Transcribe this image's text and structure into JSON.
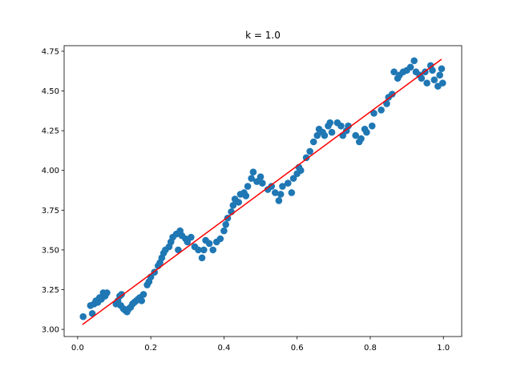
{
  "chart_data": {
    "type": "scatter",
    "title": "k = 1.0",
    "color": "#1f77b4",
    "x": [
      0.015,
      0.04,
      0.035,
      0.045,
      0.05,
      0.055,
      0.06,
      0.065,
      0.07,
      0.08,
      0.075,
      0.105,
      0.11,
      0.115,
      0.12,
      0.118,
      0.125,
      0.13,
      0.135,
      0.14,
      0.145,
      0.15,
      0.155,
      0.16,
      0.165,
      0.17,
      0.175,
      0.18,
      0.19,
      0.195,
      0.2,
      0.21,
      0.22,
      0.225,
      0.23,
      0.235,
      0.24,
      0.25,
      0.255,
      0.26,
      0.27,
      0.28,
      0.285,
      0.275,
      0.295,
      0.3,
      0.31,
      0.32,
      0.33,
      0.34,
      0.345,
      0.35,
      0.36,
      0.37,
      0.38,
      0.39,
      0.4,
      0.405,
      0.41,
      0.42,
      0.425,
      0.43,
      0.44,
      0.445,
      0.455,
      0.46,
      0.465,
      0.475,
      0.48,
      0.49,
      0.5,
      0.505,
      0.52,
      0.53,
      0.54,
      0.55,
      0.555,
      0.56,
      0.575,
      0.585,
      0.59,
      0.6,
      0.605,
      0.61,
      0.625,
      0.635,
      0.645,
      0.655,
      0.66,
      0.67,
      0.675,
      0.685,
      0.69,
      0.695,
      0.71,
      0.72,
      0.725,
      0.735,
      0.74,
      0.76,
      0.77,
      0.775,
      0.785,
      0.79,
      0.805,
      0.81,
      0.83,
      0.845,
      0.85,
      0.86,
      0.865,
      0.875,
      0.88,
      0.89,
      0.9,
      0.91,
      0.92,
      0.925,
      0.935,
      0.94,
      0.95,
      0.955,
      0.965,
      0.97,
      0.975,
      0.985,
      0.99,
      0.995,
      0.998
    ],
    "values": [
      3.08,
      3.1,
      3.15,
      3.16,
      3.18,
      3.17,
      3.2,
      3.19,
      3.23,
      3.23,
      3.21,
      3.16,
      3.18,
      3.21,
      3.22,
      3.15,
      3.13,
      3.12,
      3.11,
      3.13,
      3.14,
      3.16,
      3.17,
      3.18,
      3.19,
      3.2,
      3.18,
      3.22,
      3.28,
      3.3,
      3.33,
      3.36,
      3.4,
      3.42,
      3.45,
      3.48,
      3.5,
      3.52,
      3.55,
      3.58,
      3.6,
      3.62,
      3.59,
      3.5,
      3.57,
      3.55,
      3.58,
      3.52,
      3.5,
      3.45,
      3.5,
      3.56,
      3.54,
      3.5,
      3.55,
      3.57,
      3.62,
      3.66,
      3.7,
      3.74,
      3.78,
      3.82,
      3.8,
      3.85,
      3.86,
      3.84,
      3.9,
      3.95,
      3.99,
      3.93,
      3.96,
      3.92,
      3.88,
      3.9,
      3.86,
      3.81,
      3.85,
      3.9,
      3.92,
      3.86,
      3.95,
      3.98,
      4.02,
      4.0,
      4.08,
      4.12,
      4.18,
      4.22,
      4.26,
      4.24,
      4.22,
      4.28,
      4.3,
      4.24,
      4.3,
      4.28,
      4.22,
      4.25,
      4.28,
      4.22,
      4.18,
      4.2,
      4.26,
      4.24,
      4.28,
      4.36,
      4.38,
      4.42,
      4.46,
      4.48,
      4.62,
      4.58,
      4.6,
      4.62,
      4.63,
      4.65,
      4.69,
      4.62,
      4.6,
      4.58,
      4.62,
      4.55,
      4.66,
      4.63,
      4.57,
      4.53,
      4.6,
      4.64,
      4.55
    ],
    "line": {
      "color": "#ff0000",
      "x": [
        0.013,
        0.995
      ],
      "values": [
        3.03,
        4.7
      ]
    },
    "xlim": [
      -0.037,
      1.05
    ],
    "ylim": [
      2.955,
      4.785
    ],
    "xticks": [
      {
        "value": 0,
        "label": "0.0"
      },
      {
        "value": 0.2,
        "label": "0.2"
      },
      {
        "value": 0.4,
        "label": "0.4"
      },
      {
        "value": 0.6,
        "label": "0.6"
      },
      {
        "value": 0.8,
        "label": "0.8"
      },
      {
        "value": 1,
        "label": "1.0"
      }
    ],
    "yticks": [
      {
        "value": 3,
        "label": "3.00"
      },
      {
        "value": 3.25,
        "label": "3.25"
      },
      {
        "value": 3.5,
        "label": "3.50"
      },
      {
        "value": 3.75,
        "label": "3.75"
      },
      {
        "value": 4,
        "label": "4.00"
      },
      {
        "value": 4.25,
        "label": "4.25"
      },
      {
        "value": 4.5,
        "label": "4.50"
      },
      {
        "value": 4.75,
        "label": "4.75"
      }
    ]
  }
}
